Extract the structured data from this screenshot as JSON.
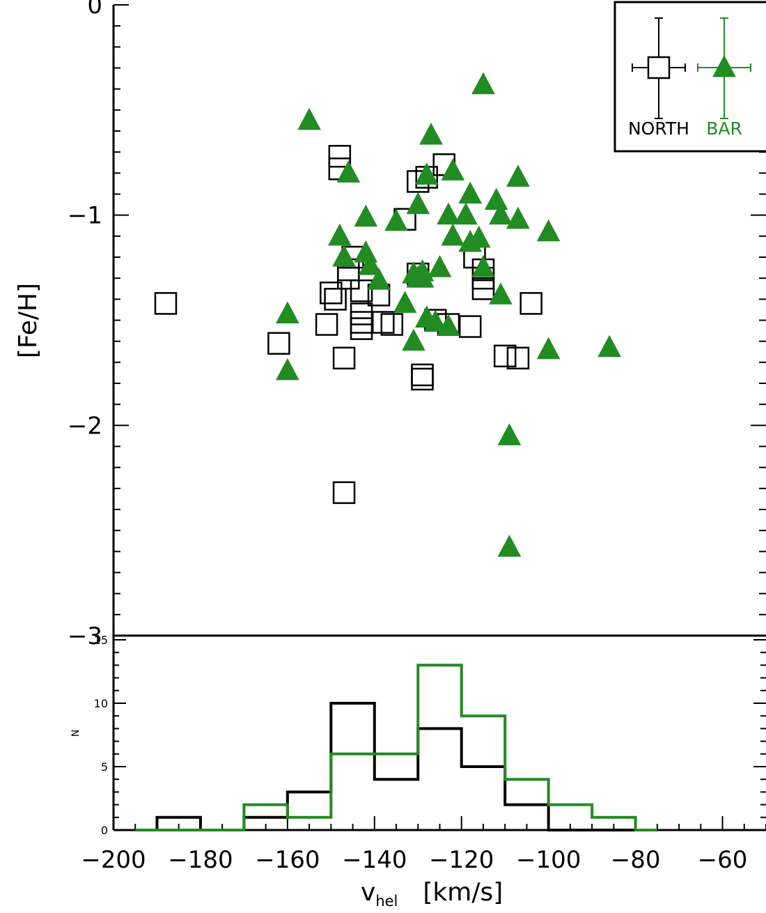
{
  "colors": {
    "north": "#000000",
    "bar": "#228b22",
    "axis": "#000000",
    "background": "#ffffff"
  },
  "chart_data": [
    {
      "type": "scatter",
      "title": "",
      "xlabel": "",
      "ylabel": "[Fe/H]",
      "xlim": [
        -200,
        -50
      ],
      "ylim": [
        -3,
        0
      ],
      "yticks": [
        0,
        -1,
        -2,
        -3
      ],
      "ytick_labels": [
        "0",
        "−1",
        "−2",
        "−3"
      ],
      "grid": false,
      "legend": {
        "placement": "top-right",
        "entries": [
          {
            "name": "NORTH",
            "marker": "open-square",
            "color": "#000000"
          },
          {
            "name": "BAR",
            "marker": "filled-triangle",
            "color": "#228b22"
          }
        ]
      },
      "series": [
        {
          "name": "NORTH",
          "marker": "open-square",
          "color": "#000000",
          "points": [
            [
              -188,
              -1.42
            ],
            [
              -162,
              -1.61
            ],
            [
              -148,
              -0.72
            ],
            [
              -148,
              -0.78
            ],
            [
              -147,
              -2.32
            ],
            [
              -147,
              -1.68
            ],
            [
              -150,
              -1.37
            ],
            [
              -151,
              -1.52
            ],
            [
              -149,
              -1.4
            ],
            [
              -146,
              -1.3
            ],
            [
              -146,
              -1.26
            ],
            [
              -145,
              -1.2
            ],
            [
              -143,
              -1.36
            ],
            [
              -143,
              -1.47
            ],
            [
              -143,
              -1.51
            ],
            [
              -143,
              -1.54
            ],
            [
              -139,
              -1.38
            ],
            [
              -138,
              -1.51
            ],
            [
              -136,
              -1.52
            ],
            [
              -133,
              -1.02
            ],
            [
              -130,
              -0.84
            ],
            [
              -129,
              -1.78
            ],
            [
              -129,
              -1.76
            ],
            [
              -130,
              -1.28
            ],
            [
              -128,
              -0.82
            ],
            [
              -126,
              -1.5
            ],
            [
              -124,
              -0.76
            ],
            [
              -123,
              -1.52
            ],
            [
              -117,
              -1.2
            ],
            [
              -118,
              -1.53
            ],
            [
              -115,
              -1.26
            ],
            [
              -115,
              -1.3
            ],
            [
              -115,
              -1.35
            ],
            [
              -110,
              -1.67
            ],
            [
              -107,
              -1.68
            ],
            [
              -104,
              -1.42
            ]
          ]
        },
        {
          "name": "BAR",
          "marker": "filled-triangle",
          "color": "#228b22",
          "points": [
            [
              -160,
              -1.47
            ],
            [
              -160,
              -1.74
            ],
            [
              -155,
              -0.55
            ],
            [
              -148,
              -1.1
            ],
            [
              -147,
              -1.2
            ],
            [
              -146,
              -0.8
            ],
            [
              -142,
              -1.01
            ],
            [
              -142,
              -1.18
            ],
            [
              -141,
              -1.24
            ],
            [
              -139,
              -1.31
            ],
            [
              -135,
              -1.03
            ],
            [
              -133,
              -1.42
            ],
            [
              -131,
              -1.6
            ],
            [
              -131,
              -1.28
            ],
            [
              -130,
              -1.3
            ],
            [
              -130,
              -0.95
            ],
            [
              -129,
              -1.27
            ],
            [
              -129,
              -1.3
            ],
            [
              -128,
              -0.81
            ],
            [
              -128,
              -1.49
            ],
            [
              -127,
              -0.62
            ],
            [
              -126,
              -1.51
            ],
            [
              -125,
              -1.25
            ],
            [
              -123,
              -1.0
            ],
            [
              -123,
              -1.53
            ],
            [
              -122,
              -1.1
            ],
            [
              -122,
              -0.79
            ],
            [
              -119,
              -1.0
            ],
            [
              -118,
              -0.9
            ],
            [
              -118,
              -1.13
            ],
            [
              -116,
              -1.11
            ],
            [
              -115,
              -1.25
            ],
            [
              -115,
              -0.38
            ],
            [
              -112,
              -0.93
            ],
            [
              -111,
              -1.0
            ],
            [
              -111,
              -1.38
            ],
            [
              -109,
              -2.05
            ],
            [
              -109,
              -2.58
            ],
            [
              -107,
              -1.02
            ],
            [
              -107,
              -0.82
            ],
            [
              -100,
              -1.08
            ],
            [
              -100,
              -1.64
            ],
            [
              -86,
              -1.63
            ]
          ]
        }
      ]
    },
    {
      "type": "histogram",
      "title": "",
      "xlabel": "v_hel [km/s]",
      "xlabel_main": "v",
      "xlabel_sub": "hel",
      "xlabel_unit": "[km/s]",
      "ylabel": "N",
      "xlim": [
        -200,
        -50
      ],
      "ylim": [
        0,
        15
      ],
      "xticks": [
        -200,
        -180,
        -160,
        -140,
        -120,
        -100,
        -80,
        -60
      ],
      "xtick_labels": [
        "−200",
        "−180",
        "−160",
        "−140",
        "−120",
        "−100",
        "−80",
        "−60"
      ],
      "yticks": [
        0,
        5,
        10,
        15
      ],
      "ytick_labels": [
        "0",
        "5",
        "10",
        "15"
      ],
      "bin_edges": [
        -195,
        -190,
        -180,
        -170,
        -160,
        -150,
        -140,
        -130,
        -120,
        -110,
        -100,
        -90,
        -80,
        -75
      ],
      "series": [
        {
          "name": "NORTH",
          "color": "#000000",
          "counts": [
            0,
            1,
            0,
            1,
            3,
            10,
            4,
            8,
            5,
            2,
            0,
            0,
            0
          ]
        },
        {
          "name": "BAR",
          "color": "#228b22",
          "counts": [
            0,
            0,
            0,
            2,
            1,
            6,
            6,
            13,
            9,
            4,
            2,
            1,
            0
          ]
        }
      ]
    }
  ]
}
